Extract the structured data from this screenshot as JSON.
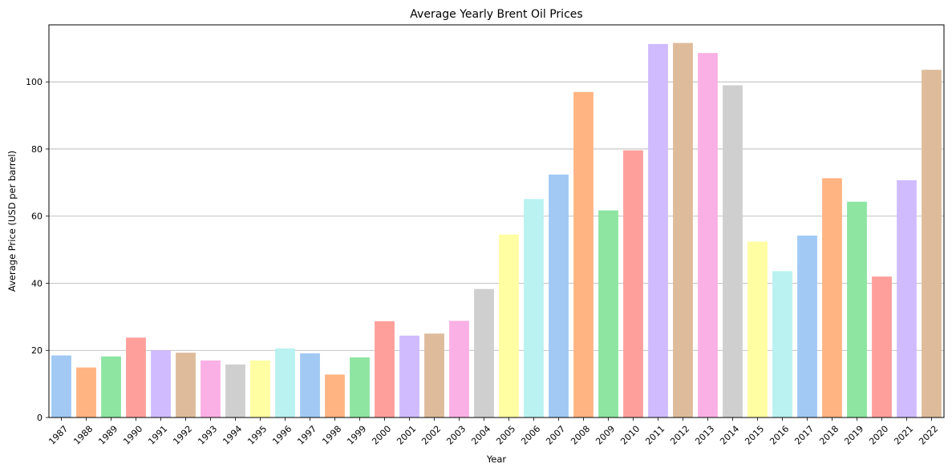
{
  "chart_data": {
    "type": "bar",
    "title": "Average Yearly Brent Oil Prices",
    "xlabel": "Year",
    "ylabel": "Average Price (USD per barrel)",
    "ylim": [
      0,
      117
    ],
    "yticks": [
      0,
      20,
      40,
      60,
      80,
      100
    ],
    "grid": "y",
    "categories": [
      "1987",
      "1988",
      "1989",
      "1990",
      "1991",
      "1992",
      "1993",
      "1994",
      "1995",
      "1996",
      "1997",
      "1998",
      "1999",
      "2000",
      "2001",
      "2002",
      "2003",
      "2004",
      "2005",
      "2006",
      "2007",
      "2008",
      "2009",
      "2010",
      "2011",
      "2012",
      "2013",
      "2014",
      "2015",
      "2016",
      "2017",
      "2018",
      "2019",
      "2020",
      "2021",
      "2022"
    ],
    "values": [
      18.5,
      14.9,
      18.2,
      23.8,
      20.0,
      19.3,
      17.0,
      15.8,
      17.0,
      20.6,
      19.1,
      12.8,
      17.9,
      28.7,
      24.4,
      25.0,
      28.8,
      38.3,
      54.5,
      65.1,
      72.4,
      97.0,
      61.7,
      79.6,
      111.3,
      111.6,
      108.6,
      99.0,
      52.4,
      43.6,
      54.2,
      71.3,
      64.3,
      42.0,
      70.7,
      103.6
    ],
    "palette": [
      "#a1c9f4",
      "#ffb482",
      "#8de5a1",
      "#ff9f9b",
      "#d0bbff",
      "#debb9b",
      "#fab0e4",
      "#cfcfcf",
      "#fffea3",
      "#b9f2f0"
    ]
  }
}
